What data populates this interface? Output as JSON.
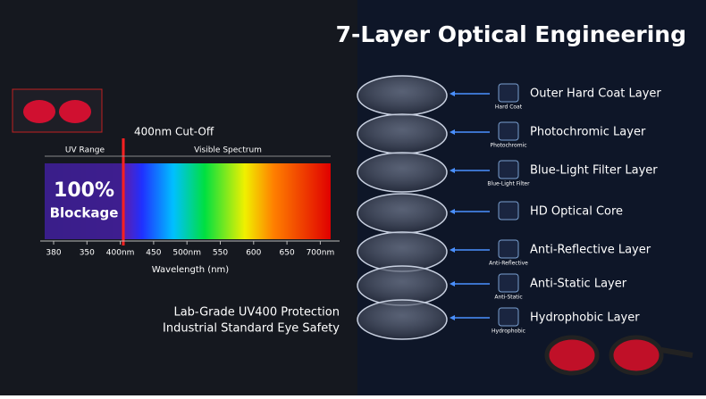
{
  "title": "7-Layer Optical Engineering",
  "spectrum": {
    "cutoff_label": "400nm Cut-Off",
    "uv_range": "UV Range",
    "visible": "Visible Spectrum",
    "blockage_pct": "100%",
    "blockage": "Blockage",
    "ticks": [
      "380",
      "350",
      "400nm",
      "450",
      "500nm",
      "550",
      "600",
      "650",
      "700nm"
    ],
    "axis_label": "Wavelength (nm)"
  },
  "tagline": [
    "Lab-Grade UV400 Protection",
    "Industrial Standard Eye Safety"
  ],
  "layers": [
    {
      "name": "Outer Hard Coat Layer",
      "icon_label": "Hard Coat"
    },
    {
      "name": "Photochromic Layer",
      "icon_label": "Photochromic"
    },
    {
      "name": "Blue-Light Filter Layer",
      "icon_label": "Blue-Light Filter"
    },
    {
      "name": "HD Optical Core"
    },
    {
      "name": "Anti-Reflective Layer",
      "icon_label": "Anti-Reflective"
    },
    {
      "name": "Anti-Static Layer",
      "icon_label": "Anti-Static"
    },
    {
      "name": "Hydrophobic Layer",
      "icon_label": "Hydrophobic"
    }
  ]
}
